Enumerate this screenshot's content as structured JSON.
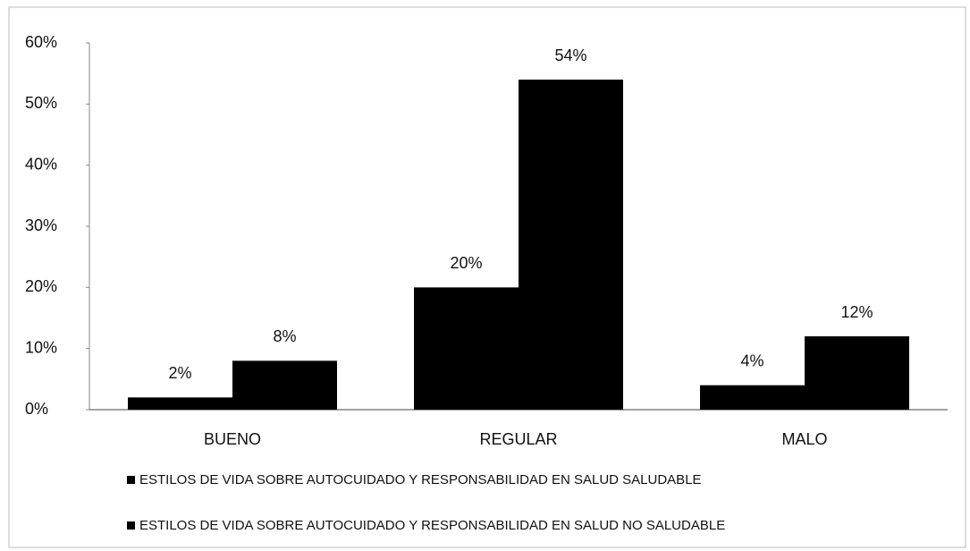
{
  "chart_data": {
    "type": "bar",
    "categories": [
      "BUENO",
      "REGULAR",
      "MALO"
    ],
    "series": [
      {
        "name": "ESTILOS DE VIDA SOBRE AUTOCUIDADO Y RESPONSABILIDAD EN SALUD SALUDABLE",
        "color": "#000000",
        "values": [
          2,
          20,
          4
        ],
        "value_labels": [
          "2%",
          "20%",
          "4%"
        ]
      },
      {
        "name": "ESTILOS DE VIDA SOBRE AUTOCUIDADO Y RESPONSABILIDAD EN SALUD NO SALUDABLE",
        "color": "#000000",
        "values": [
          8,
          54,
          12
        ],
        "value_labels": [
          "8%",
          "54%",
          "12%"
        ]
      }
    ],
    "ylim": [
      0,
      60
    ],
    "yticks": [
      {
        "value": 0,
        "label": "0%"
      },
      {
        "value": 10,
        "label": "10%"
      },
      {
        "value": 20,
        "label": "20%"
      },
      {
        "value": 30,
        "label": "30%"
      },
      {
        "value": 40,
        "label": "40%"
      },
      {
        "value": 50,
        "label": "50%"
      },
      {
        "value": 60,
        "label": "60%"
      }
    ],
    "legend": "bottom"
  }
}
